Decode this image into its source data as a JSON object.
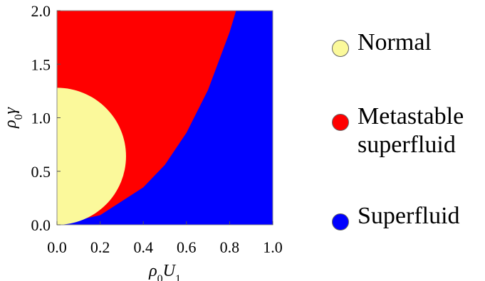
{
  "chart_data": {
    "type": "area",
    "title": "",
    "xlabel": "ρ0U1",
    "ylabel": "ρ0γ",
    "xlim": [
      0.0,
      1.0
    ],
    "ylim": [
      0.0,
      2.0
    ],
    "x_ticks": [
      "0.0",
      "0.2",
      "0.4",
      "0.6",
      "0.8",
      "1.0"
    ],
    "y_ticks": [
      "0.0",
      "0.5",
      "1.0",
      "1.5",
      "2.0"
    ],
    "grid": false,
    "legend_position": "right",
    "regions": [
      {
        "name": "Normal",
        "color": "#fbf99b",
        "shape": "half-disk centered at (0, 0.64) with x-radius 0.32 and y-radius 0.64"
      },
      {
        "name": "Metastable superfluid",
        "color": "#ff0000",
        "boundary_to_superfluid": {
          "x": [
            0.0,
            0.2,
            0.4,
            0.5,
            0.6,
            0.7,
            0.8,
            0.83
          ],
          "y": [
            0.0,
            0.09,
            0.35,
            0.56,
            0.86,
            1.26,
            1.8,
            2.0
          ]
        }
      },
      {
        "name": "Superfluid",
        "color": "#0000ff"
      }
    ],
    "legend": [
      {
        "lines": [
          "Normal"
        ],
        "color": "#fbf99b"
      },
      {
        "lines": [
          "Metastable",
          "superfluid"
        ],
        "color": "#ff0000"
      },
      {
        "lines": [
          "Superfluid"
        ],
        "color": "#0000ff"
      }
    ]
  }
}
